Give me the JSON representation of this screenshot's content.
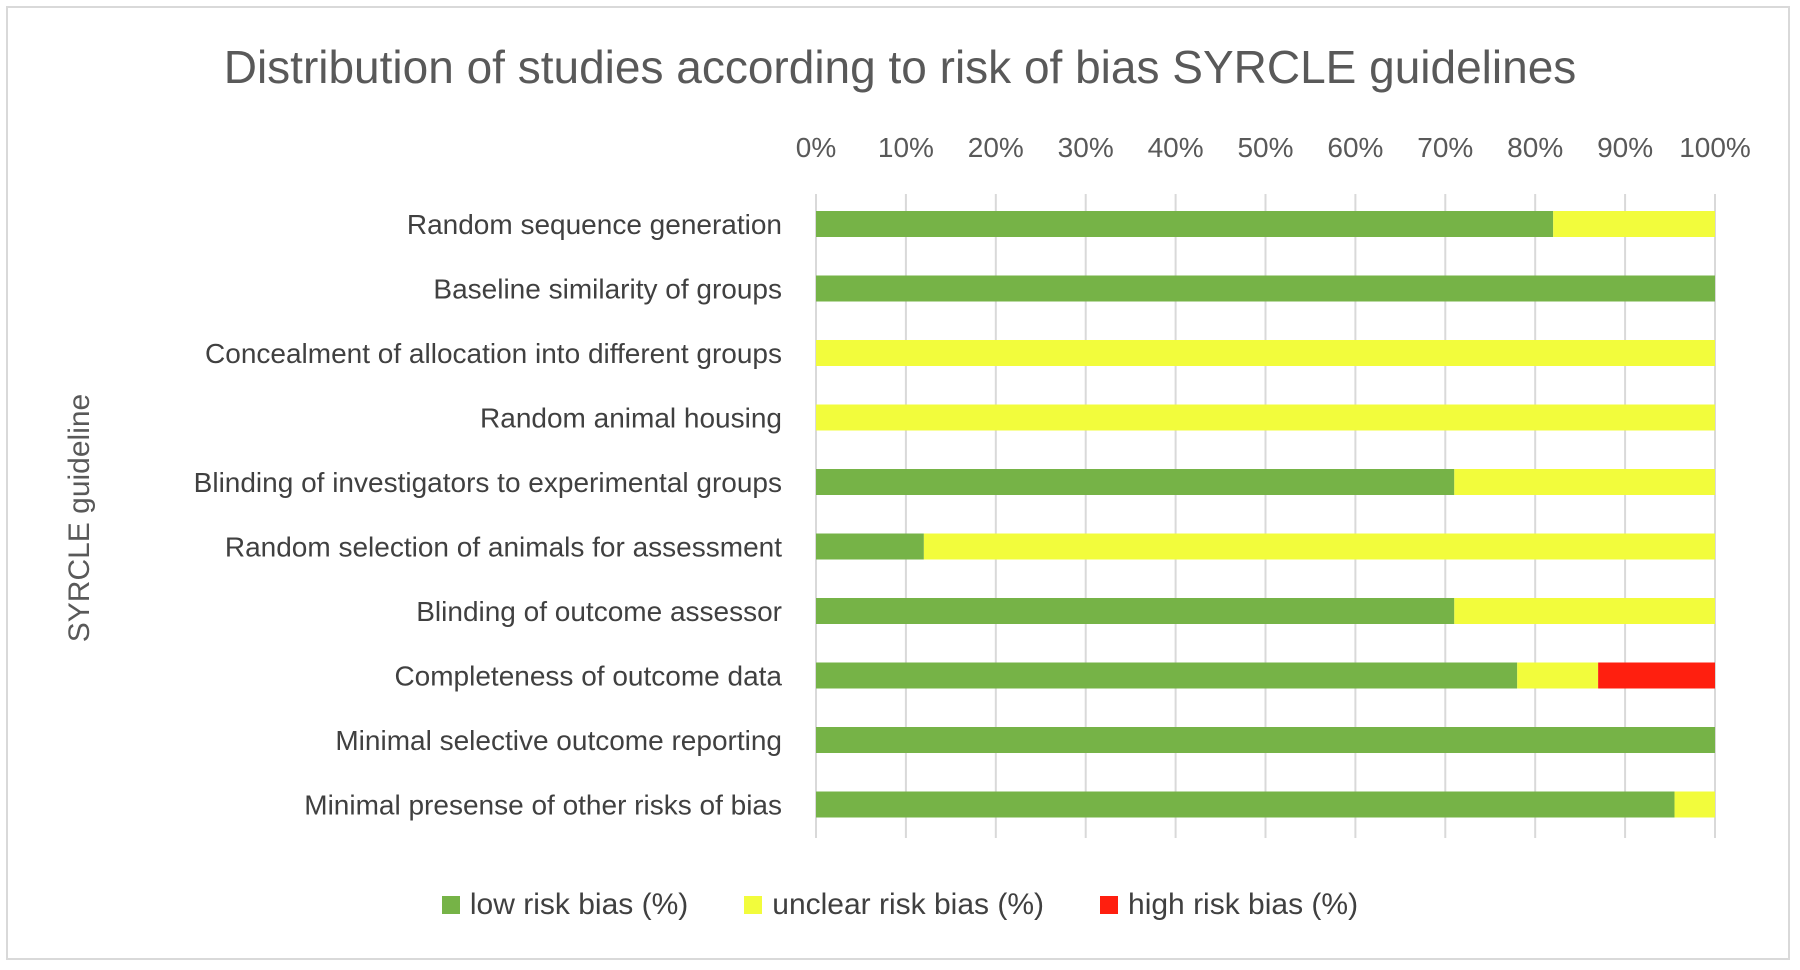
{
  "chart_data": {
    "type": "bar",
    "orientation": "horizontal",
    "stacked": true,
    "title": "Distribution of studies according to risk of bias SYRCLE guidelines",
    "ylabel": "SYRCLE guideline",
    "xlabel": "",
    "xlim": [
      0,
      100
    ],
    "x_ticks": [
      "0%",
      "10%",
      "20%",
      "30%",
      "40%",
      "50%",
      "60%",
      "70%",
      "80%",
      "90%",
      "100%"
    ],
    "x_tick_values": [
      0,
      10,
      20,
      30,
      40,
      50,
      60,
      70,
      80,
      90,
      100
    ],
    "x_axis_position": "top",
    "grid": true,
    "legend_position": "bottom",
    "categories": [
      "Random sequence generation",
      "Baseline similarity of groups",
      "Concealment of allocation into different groups",
      "Random animal housing",
      "Blinding of investigators to experimental groups",
      "Random selection of animals for assessment",
      "Blinding of outcome assessor",
      "Completeness of outcome data",
      "Minimal selective outcome reporting",
      "Minimal presense of other risks of bias"
    ],
    "series": [
      {
        "name": "low risk bias (%)",
        "color": "#76b347",
        "values": [
          82,
          100,
          0,
          0,
          71,
          12,
          71,
          78,
          100,
          95.5
        ]
      },
      {
        "name": "unclear risk bias (%)",
        "color": "#f2fc3c",
        "values": [
          18,
          0,
          100,
          100,
          29,
          88,
          29,
          9,
          0,
          4.5
        ]
      },
      {
        "name": "high risk bias (%)",
        "color": "#ff1f0f",
        "values": [
          0,
          0,
          0,
          0,
          0,
          0,
          0,
          13,
          0,
          0
        ]
      }
    ]
  }
}
